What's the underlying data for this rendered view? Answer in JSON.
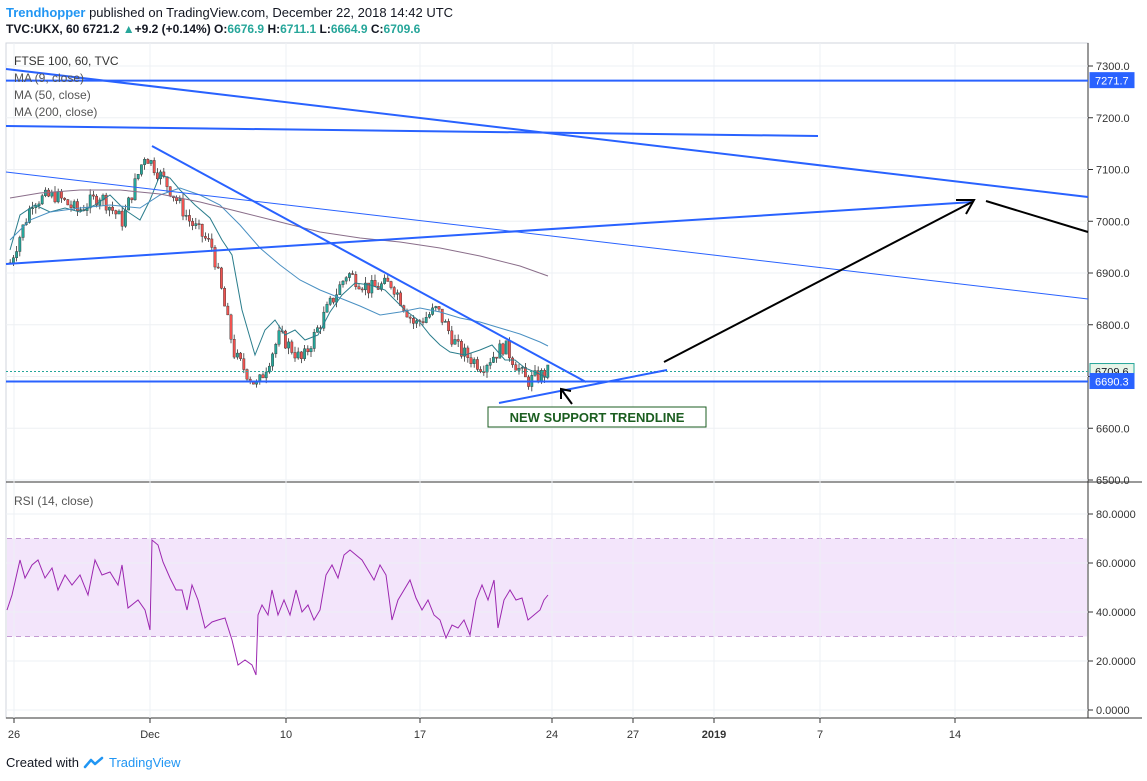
{
  "header": {
    "author": "Trendhopper",
    "published_text": " published on TradingView.com, December 22, 2018 14:42 UTC",
    "symbol": "TVC:UKX, 60",
    "last": "6721.2",
    "change": "+9.2 (+0.14%)",
    "o_label": "O:",
    "o_value": "6676.9",
    "h_label": "H:",
    "h_value": "6711.1",
    "l_label": "L:",
    "l_value": "6664.9",
    "c_label": "C:",
    "c_value": "6709.6"
  },
  "footer": {
    "created_with": "Created with",
    "brand": "TradingView"
  },
  "chart_data": [
    {
      "type": "line",
      "title": "FTSE 100, 60, TVC",
      "legend": [
        "MA (9, close)",
        "MA (50, close)",
        "MA (200, close)"
      ],
      "ylim": [
        6490,
        7330
      ],
      "y_ticks": [
        "7300.0",
        "7200.0",
        "7100.0",
        "7000.0",
        "6900.0",
        "6800.0",
        "6700.0",
        "6600.0",
        "6500.0"
      ],
      "price_labels": [
        {
          "text": "7271.7",
          "value": 7271.7,
          "color": "#2962ff"
        },
        {
          "text": "6709.6",
          "value": 6709.6,
          "color": "#26a69a"
        },
        {
          "text": "6690.3",
          "value": 6690.3,
          "color": "#2962ff"
        }
      ],
      "x_ticks": [
        "26",
        "Dec",
        "10",
        "17",
        "24",
        "27",
        "2019",
        "7",
        "14"
      ],
      "x_tick_bold": "2019",
      "close_path": {
        "x": [
          "Nov 26",
          "Nov 27",
          "Nov 28",
          "Nov 29",
          "Nov 30",
          "Dec 1",
          "Dec 3",
          "Dec 4",
          "Dec 5",
          "Dec 6",
          "Dec 7",
          "Dec 8",
          "Dec 10",
          "Dec 11",
          "Dec 12",
          "Dec 13",
          "Dec 14",
          "Dec 15",
          "Dec 17",
          "Dec 18",
          "Dec 19",
          "Dec 20",
          "Dec 21",
          "Dec 22",
          "Dec 24"
        ],
        "y": [
          6920,
          7040,
          7050,
          7020,
          7050,
          7000,
          7130,
          7070,
          7000,
          6950,
          6740,
          6680,
          6780,
          6730,
          6820,
          6900,
          6870,
          6880,
          6800,
          6830,
          6750,
          6720,
          6760,
          6690,
          6710
        ]
      },
      "annotation": "NEW SUPPORT TRENDLINE",
      "annotation_color": "#1b5e20"
    },
    {
      "type": "line",
      "title": "RSI (14, close)",
      "ylim": [
        -4,
        84
      ],
      "y_ticks": [
        "80.0000",
        "60.0000",
        "40.0000",
        "20.0000",
        "0.0000"
      ],
      "band": [
        30,
        70
      ],
      "x": [
        "Nov 26",
        "Nov 27",
        "Nov 28",
        "Nov 29",
        "Nov 30",
        "Dec 1",
        "Dec 3",
        "Dec 4",
        "Dec 5",
        "Dec 6",
        "Dec 7",
        "Dec 8",
        "Dec 10",
        "Dec 11",
        "Dec 12",
        "Dec 13",
        "Dec 14",
        "Dec 15",
        "Dec 17",
        "Dec 18",
        "Dec 19",
        "Dec 20",
        "Dec 21",
        "Dec 22",
        "Dec 24"
      ],
      "values": [
        40,
        64,
        58,
        55,
        63,
        42,
        70,
        55,
        45,
        35,
        20,
        15,
        48,
        40,
        55,
        65,
        62,
        55,
        40,
        50,
        32,
        35,
        50,
        36,
        47
      ]
    }
  ],
  "colors": {
    "trendline": "#2962ff",
    "rsi_band": "#f3e5fb",
    "rsi_line": "#9c27b0",
    "up": "#26a69a",
    "down": "#ef5350",
    "arrow": "#000000"
  }
}
